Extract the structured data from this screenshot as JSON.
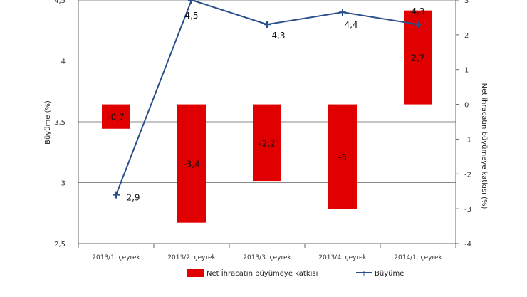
{
  "chart_data": {
    "type": "bar+line",
    "categories": [
      "2013/1. çeyrek",
      "2013/2. çeyrek",
      "2013/3. çeyrek",
      "2013/4. çeyrek",
      "2014/1. çeyrek"
    ],
    "series": [
      {
        "name": "Net İhracatın büyümeye katkısı",
        "type": "bar",
        "axis": "right",
        "color": "#e00000",
        "values": [
          -0.7,
          -3.4,
          -2.2,
          -3,
          2.7
        ],
        "labels": [
          "-0,7",
          "-3,4",
          "-2,2",
          "-3",
          "2,7"
        ]
      },
      {
        "name": "Büyüme",
        "type": "line",
        "axis": "left",
        "color": "#2a4f8a",
        "values": [
          2.9,
          4.5,
          4.3,
          4.4,
          4.3
        ],
        "labels": [
          "2,9",
          "4,5",
          "4,3",
          "4,4",
          "4,3"
        ]
      }
    ],
    "left_axis": {
      "label": "Büyüme (%)",
      "ylim": [
        2.5,
        4.5
      ],
      "ticks": [
        2.5,
        3,
        3.5,
        4,
        4.5
      ],
      "tick_labels": [
        "2,5",
        "3",
        "3,5",
        "4",
        "4,5"
      ]
    },
    "right_axis": {
      "label": "Net ihracatın büyümeye katkısı (%)",
      "ylim": [
        -4,
        3
      ],
      "ticks": [
        -4,
        -3,
        -2,
        -1,
        0,
        1,
        2,
        3
      ],
      "tick_labels": [
        "-4",
        "-3",
        "-2",
        "-1",
        "0",
        "1",
        "2",
        "3"
      ]
    },
    "grid": true,
    "legend": "bottom"
  }
}
